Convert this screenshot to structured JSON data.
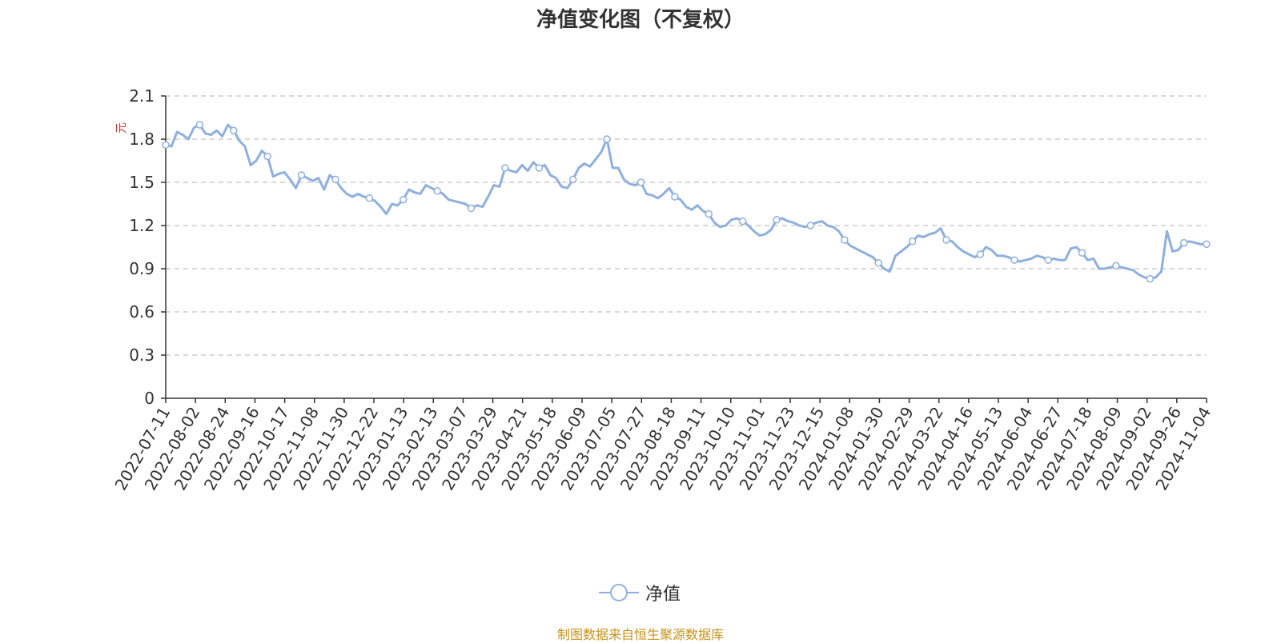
{
  "chart_data": {
    "type": "line",
    "title": "净值变化图（不复权）",
    "ylabel": "元",
    "ylim": [
      0,
      2.1
    ],
    "yticks": [
      0,
      0.3,
      0.6,
      0.9,
      1.2,
      1.5,
      1.8,
      2.1
    ],
    "grid": true,
    "legend_position": "bottom-center",
    "line_color": "#8fb0dd",
    "xticks": [
      "2022-07-11",
      "2022-08-02",
      "2022-08-24",
      "2022-09-16",
      "2022-10-17",
      "2022-11-08",
      "2022-11-30",
      "2022-12-22",
      "2023-01-13",
      "2023-02-13",
      "2023-03-07",
      "2023-03-29",
      "2023-04-21",
      "2023-05-18",
      "2023-06-09",
      "2023-07-05",
      "2023-07-27",
      "2023-08-18",
      "2023-09-11",
      "2023-10-10",
      "2023-11-01",
      "2023-11-23",
      "2023-12-15",
      "2024-01-08",
      "2024-01-30",
      "2024-02-29",
      "2024-03-22",
      "2024-04-16",
      "2024-05-13",
      "2024-06-04",
      "2024-06-27",
      "2024-07-18",
      "2024-08-09",
      "2024-09-02",
      "2024-09-26",
      "2024-11-04"
    ],
    "series": [
      {
        "name": "净值",
        "values": [
          1.76,
          1.75,
          1.85,
          1.83,
          1.8,
          1.88,
          1.9,
          1.84,
          1.83,
          1.86,
          1.82,
          1.9,
          1.86,
          1.79,
          1.75,
          1.62,
          1.65,
          1.72,
          1.68,
          1.54,
          1.56,
          1.57,
          1.52,
          1.46,
          1.55,
          1.53,
          1.51,
          1.53,
          1.45,
          1.55,
          1.52,
          1.46,
          1.42,
          1.4,
          1.42,
          1.4,
          1.39,
          1.37,
          1.33,
          1.28,
          1.35,
          1.34,
          1.38,
          1.45,
          1.43,
          1.42,
          1.48,
          1.46,
          1.44,
          1.42,
          1.38,
          1.37,
          1.36,
          1.35,
          1.32,
          1.34,
          1.33,
          1.4,
          1.48,
          1.47,
          1.6,
          1.58,
          1.57,
          1.62,
          1.58,
          1.64,
          1.6,
          1.62,
          1.55,
          1.53,
          1.47,
          1.46,
          1.52,
          1.6,
          1.63,
          1.61,
          1.66,
          1.71,
          1.8,
          1.6,
          1.6,
          1.52,
          1.49,
          1.48,
          1.5,
          1.42,
          1.41,
          1.39,
          1.42,
          1.46,
          1.4,
          1.38,
          1.33,
          1.31,
          1.34,
          1.3,
          1.28,
          1.22,
          1.19,
          1.2,
          1.24,
          1.25,
          1.23,
          1.2,
          1.16,
          1.13,
          1.14,
          1.17,
          1.24,
          1.25,
          1.23,
          1.22,
          1.2,
          1.19,
          1.2,
          1.22,
          1.23,
          1.2,
          1.19,
          1.16,
          1.1,
          1.06,
          1.04,
          1.02,
          1.0,
          0.98,
          0.94,
          0.9,
          0.88,
          0.99,
          1.02,
          1.05,
          1.09,
          1.13,
          1.12,
          1.14,
          1.15,
          1.18,
          1.1,
          1.09,
          1.05,
          1.02,
          1.0,
          0.98,
          1.0,
          1.05,
          1.03,
          0.99,
          0.99,
          0.98,
          0.96,
          0.95,
          0.96,
          0.97,
          0.99,
          0.98,
          0.96,
          0.97,
          0.96,
          0.96,
          1.04,
          1.05,
          1.01,
          0.96,
          0.97,
          0.9,
          0.9,
          0.91,
          0.92,
          0.91,
          0.9,
          0.89,
          0.86,
          0.84,
          0.83,
          0.84,
          0.88,
          1.16,
          1.02,
          1.03,
          1.08,
          1.09,
          1.08,
          1.07,
          1.07
        ]
      }
    ]
  },
  "legend": {
    "label": "净值"
  },
  "source_note": "制图数据来自恒生聚源数据库"
}
